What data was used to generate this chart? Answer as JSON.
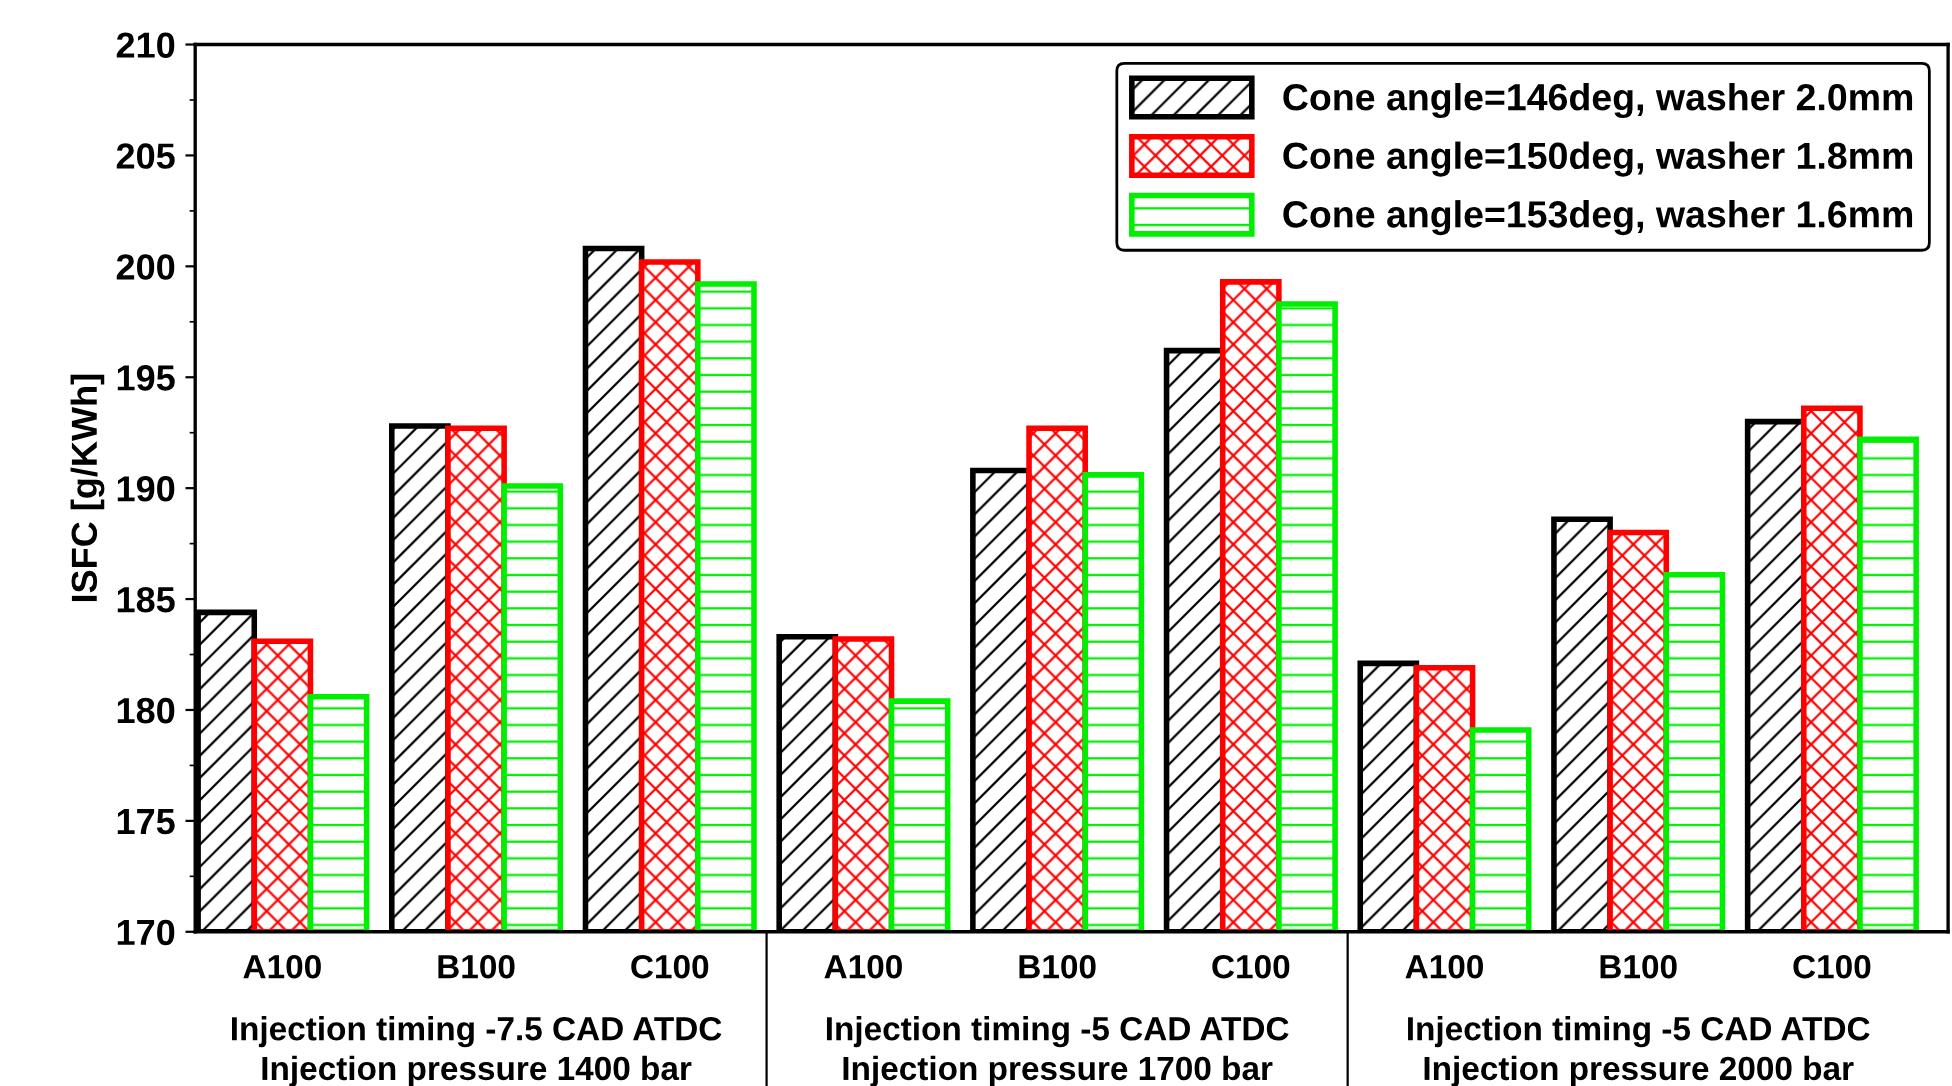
{
  "chart_data": {
    "type": "bar",
    "ylabel": "ISFC [g/KWh]",
    "categories": [
      "A100",
      "B100",
      "C100",
      "A100",
      "B100",
      "C100",
      "A100",
      "B100",
      "C100"
    ],
    "series": [
      {
        "name": "Cone angle=146deg, washer 2.0mm",
        "color": "#000000",
        "values": [
          184.4,
          192.8,
          200.8,
          183.3,
          190.8,
          196.2,
          182.1,
          188.6,
          193.0
        ]
      },
      {
        "name": "Cone angle=150deg, washer 1.8mm",
        "color": "#ff0000",
        "values": [
          183.1,
          192.7,
          200.2,
          183.2,
          192.7,
          199.3,
          181.9,
          188.0,
          193.6
        ]
      },
      {
        "name": "Cone angle=153deg, washer 1.6mm",
        "color": "#00ee00",
        "values": [
          180.6,
          190.1,
          199.2,
          180.4,
          190.6,
          198.3,
          179.1,
          186.1,
          192.2
        ]
      }
    ],
    "ylim": [
      170,
      210
    ],
    "yticks": [
      170,
      175,
      180,
      185,
      190,
      195,
      200,
      205,
      210
    ],
    "annotations": [
      "Injection timing -7.5 CAD ATDC\nInjection pressure 1400 bar",
      "Injection timing -5 CAD ATDC\nInjection pressure 1700 bar",
      "Injection timing -5 CAD ATDC\nInjection pressure 2000 bar"
    ],
    "grid": false,
    "legend": "top right"
  }
}
